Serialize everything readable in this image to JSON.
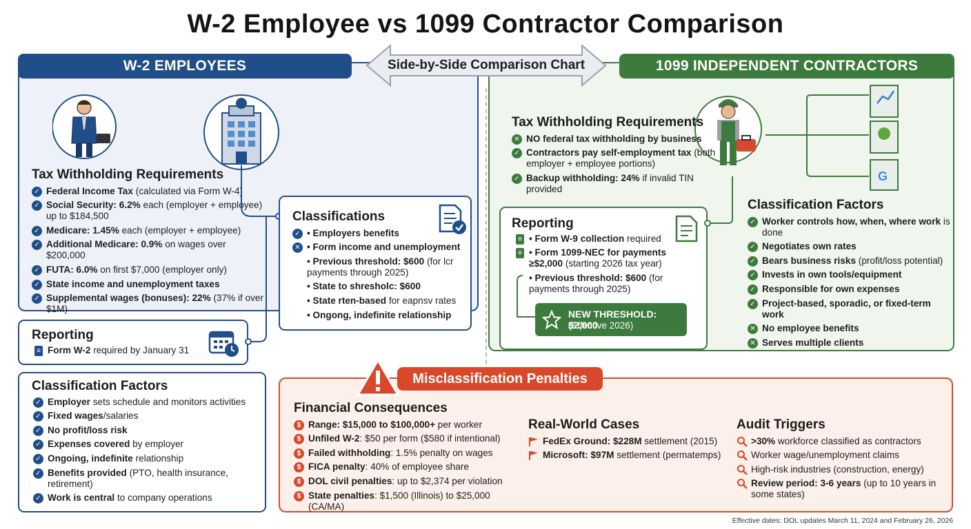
{
  "title": "W-2 Employee vs 1099 Contractor Comparison",
  "center_label": "Side-by-Side Comparison Chart",
  "colors": {
    "w2": "#1f4e89",
    "contractor": "#3d7a3d",
    "penalty": "#d9482b"
  },
  "w2": {
    "header": "W-2 EMPLOYEES",
    "tax": {
      "heading": "Tax Withholding Requirements",
      "items": [
        {
          "b": "Federal Income Tax",
          "t": " (calculated via Form W-4)"
        },
        {
          "b": "Social Security: 6.2%",
          "t": " each (employer + employee) up to $184,500"
        },
        {
          "b": "Medicare: 1.45%",
          "t": " each (employer + employee)"
        },
        {
          "b": "Additional Medicare: 0.9%",
          "t": " on wages over $200,000"
        },
        {
          "b": "FUTA: 6.0%",
          "t": " on first $7,000 (employer only)"
        },
        {
          "b": "State income and unemployment taxes",
          "t": ""
        },
        {
          "b": "Supplemental wages (bonuses): 22%",
          "t": " (37% if over $1M)"
        }
      ]
    },
    "reporting": {
      "heading": "Reporting",
      "items": [
        {
          "b": "Form W-2",
          "t": " required by January 31"
        }
      ]
    },
    "factors": {
      "heading": "Classification Factors",
      "items": [
        {
          "b": "Employer",
          "t": " sets schedule and monitors activities"
        },
        {
          "b": "Fixed wages",
          "t": "/salaries"
        },
        {
          "b": "No profit/loss risk",
          "t": ""
        },
        {
          "b": "Expenses covered",
          "t": " by employer"
        },
        {
          "b": "Ongoing, indefinite",
          "t": " relationship"
        },
        {
          "b": "Benefits provided",
          "t": " (PTO, health insurance, retirement)"
        },
        {
          "b": "Work is central",
          "t": " to company operations"
        }
      ]
    }
  },
  "classifications": {
    "heading": "Classifications",
    "items": [
      {
        "b": "• Employers benefits",
        "t": ""
      },
      {
        "b": "• Form income and unemployment",
        "t": ""
      },
      {
        "b": "• Previous threshold: $600",
        "t": " (for lcr payments through 2025)"
      },
      {
        "b": "• State to shresholc: $600",
        "t": ""
      },
      {
        "b": "• State rten-based",
        "t": " for eapnsv rates"
      },
      {
        "b": "• Ongong, indefinite relationship",
        "t": ""
      }
    ]
  },
  "contractor": {
    "header": "1099 INDEPENDENT CONTRACTORS",
    "tax": {
      "heading": "Tax Withholding Requirements",
      "items": [
        {
          "b": "NO federal tax withholding by business",
          "t": ""
        },
        {
          "b": "Contractors pay self-employment tax",
          "t": " (both employer + employee portions)"
        },
        {
          "b": "Backup withholding: 24%",
          "t": " if invalid TIN provided"
        }
      ]
    },
    "reporting": {
      "heading": "Reporting",
      "items": [
        {
          "b": "• Form W-9 collection",
          "t": " required"
        },
        {
          "b": "• Form 1099-NEC for payments ≥$2,000",
          "t": " (starting 2026 tax year)"
        },
        {
          "b": "• Previous threshold: $600",
          "t": " (for payments through 2025)"
        }
      ],
      "new_threshold": "NEW THRESHOLD: $2,000",
      "new_threshold_sub": "(Effective 2026)"
    },
    "factors": {
      "heading": "Classification Factors",
      "items": [
        {
          "b": "Worker controls how, when, where work",
          "t": " is done"
        },
        {
          "b": "Negotiates own rates",
          "t": ""
        },
        {
          "b": "Bears business risks",
          "t": " (profit/loss potential)"
        },
        {
          "b": "Invests in own tools/equipment",
          "t": ""
        },
        {
          "b": "Responsible for own expenses",
          "t": ""
        },
        {
          "b": "Project-based, sporadic, or fixed-term work",
          "t": ""
        },
        {
          "b": "No employee benefits",
          "t": ""
        },
        {
          "b": "Serves multiple clients",
          "t": ""
        }
      ]
    }
  },
  "penalties": {
    "header": "Misclassification Penalties",
    "financial": {
      "heading": "Financial Consequences",
      "items": [
        {
          "b": "Range: $15,000 to $100,000+",
          "t": " per worker"
        },
        {
          "b": "Unfiled W-2",
          "t": ": $50 per form ($580 if intentional)"
        },
        {
          "b": "Failed withholding",
          "t": ": 1.5% penalty on wages"
        },
        {
          "b": "FICA penalty",
          "t": ": 40% of employee share"
        },
        {
          "b": "DOL civil penalties",
          "t": ": up to $2,374 per violation"
        },
        {
          "b": "State penalties",
          "t": ": $1,500 (Illinois) to $25,000 (CA/MA)"
        }
      ]
    },
    "cases": {
      "heading": "Real-World Cases",
      "items": [
        {
          "b": "FedEx Ground: $228M",
          "t": " settlement (2015)"
        },
        {
          "b": "Microsoft: $97M",
          "t": " settlement (permatemps)"
        }
      ]
    },
    "audit": {
      "heading": "Audit Triggers",
      "items": [
        {
          "b": ">30%",
          "t": " workforce classified as contractors"
        },
        {
          "b": "",
          "t": "Worker wage/unemployment claims"
        },
        {
          "b": "",
          "t": "High-risk industries (construction, energy)"
        },
        {
          "b": "Review period: 3-6 years",
          "t": " (up to 10 years in some states)"
        }
      ]
    }
  },
  "footnote": "Effective dates: DOL updates March 11, 2024 and February 26, 2026"
}
